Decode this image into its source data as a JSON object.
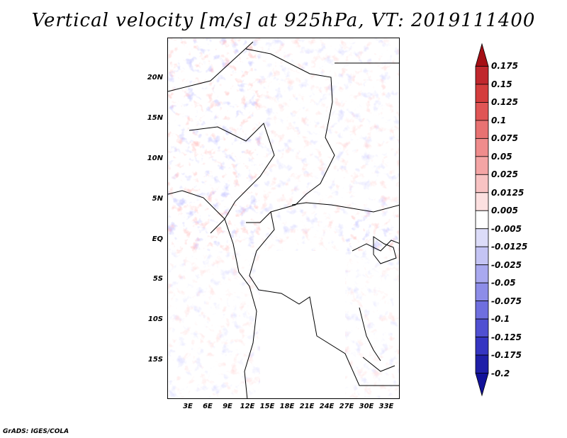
{
  "title": "Vertical velocity [m/s] at 925hPa, VT: 2019111400",
  "credit": "GrADS: IGES/COLA",
  "latitude_labels": [
    "20N",
    "15N",
    "10N",
    "5N",
    "EQ",
    "5S",
    "10S",
    "15S"
  ],
  "longitude_labels": [
    "3E",
    "6E",
    "9E",
    "12E",
    "15E",
    "18E",
    "21E",
    "24E",
    "27E",
    "30E",
    "33E"
  ],
  "colorbar": {
    "levels": [
      "0.175",
      "0.15",
      "0.125",
      "0.1",
      "0.075",
      "0.05",
      "0.025",
      "0.0125",
      "0.005",
      "-0.005",
      "-0.0125",
      "-0.025",
      "-0.05",
      "-0.075",
      "-0.1",
      "-0.125",
      "-0.175",
      "-0.2"
    ],
    "colors": [
      "#a50f15",
      "#c0272d",
      "#d43d3d",
      "#e05555",
      "#e87272",
      "#ef8c8c",
      "#f4a5a5",
      "#f8c3c3",
      "#fce0e0",
      "#ffffff",
      "#dcdcf8",
      "#c4c4f4",
      "#a9a9ef",
      "#8d8de8",
      "#6f6fdf",
      "#5050d2",
      "#3535c2",
      "#1f1fa8",
      "#12129a"
    ]
  }
}
